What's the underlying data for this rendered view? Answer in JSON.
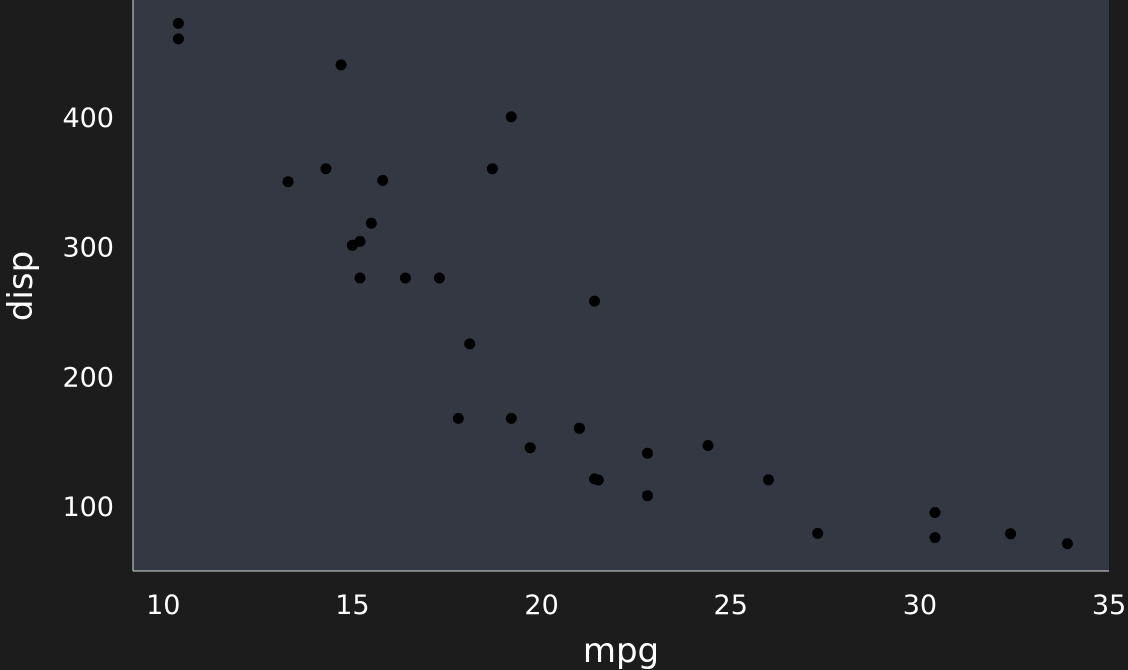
{
  "chart_data": {
    "type": "scatter",
    "title": "",
    "xlabel": "mpg",
    "ylabel": "disp",
    "xlim": [
      9.2,
      35.0
    ],
    "ylim": [
      50.0,
      490.0
    ],
    "xticks": [
      10,
      15,
      20,
      25,
      30,
      35
    ],
    "yticks": [
      100,
      200,
      300,
      400
    ],
    "grid": false,
    "colors": {
      "background": "#1c1c1c",
      "panel": "#343842",
      "points": "#000000",
      "axis_line": "#d9d9d9",
      "text": "#ffffff"
    },
    "points": [
      {
        "x": 21.0,
        "y": 160.0
      },
      {
        "x": 21.0,
        "y": 160.0
      },
      {
        "x": 22.8,
        "y": 108.0
      },
      {
        "x": 21.4,
        "y": 258.0
      },
      {
        "x": 18.7,
        "y": 360.0
      },
      {
        "x": 18.1,
        "y": 225.0
      },
      {
        "x": 14.3,
        "y": 360.0
      },
      {
        "x": 24.4,
        "y": 146.7
      },
      {
        "x": 22.8,
        "y": 140.8
      },
      {
        "x": 19.2,
        "y": 167.6
      },
      {
        "x": 17.8,
        "y": 167.6
      },
      {
        "x": 16.4,
        "y": 275.8
      },
      {
        "x": 17.3,
        "y": 275.8
      },
      {
        "x": 15.2,
        "y": 275.8
      },
      {
        "x": 10.4,
        "y": 472.0
      },
      {
        "x": 10.4,
        "y": 460.0
      },
      {
        "x": 14.7,
        "y": 440.0
      },
      {
        "x": 32.4,
        "y": 78.7
      },
      {
        "x": 30.4,
        "y": 75.7
      },
      {
        "x": 33.9,
        "y": 71.1
      },
      {
        "x": 21.5,
        "y": 120.1
      },
      {
        "x": 15.5,
        "y": 318.0
      },
      {
        "x": 15.2,
        "y": 304.0
      },
      {
        "x": 13.3,
        "y": 350.0
      },
      {
        "x": 19.2,
        "y": 400.0
      },
      {
        "x": 27.3,
        "y": 79.0
      },
      {
        "x": 26.0,
        "y": 120.3
      },
      {
        "x": 30.4,
        "y": 95.1
      },
      {
        "x": 15.8,
        "y": 351.0
      },
      {
        "x": 19.7,
        "y": 145.0
      },
      {
        "x": 15.0,
        "y": 301.0
      },
      {
        "x": 21.4,
        "y": 121.0
      }
    ]
  }
}
